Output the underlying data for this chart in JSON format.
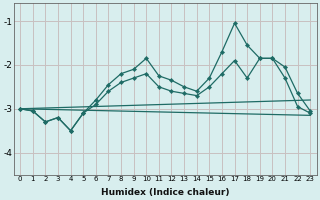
{
  "xlabel": "Humidex (Indice chaleur)",
  "xlim": [
    -0.5,
    23.5
  ],
  "ylim": [
    -4.5,
    -0.6
  ],
  "yticks": [
    -4,
    -3,
    -2,
    -1
  ],
  "xticks": [
    0,
    1,
    2,
    3,
    4,
    5,
    6,
    7,
    8,
    9,
    10,
    11,
    12,
    13,
    14,
    15,
    16,
    17,
    18,
    19,
    20,
    21,
    22,
    23
  ],
  "bg_color": "#d8eeee",
  "grid_color": "#c8c0c0",
  "line_color": "#1e6b65",
  "lines": [
    {
      "x": [
        0,
        1,
        2,
        3,
        4,
        5,
        6,
        7,
        8,
        9,
        10,
        11,
        12,
        13,
        14,
        15,
        16,
        17,
        18,
        19,
        20,
        21,
        22,
        23
      ],
      "y": [
        -3.0,
        -3.05,
        -3.3,
        -3.2,
        -3.5,
        -3.1,
        -2.8,
        -2.45,
        -2.2,
        -2.1,
        -1.85,
        -2.25,
        -2.35,
        -2.5,
        -2.6,
        -2.3,
        -1.7,
        -1.05,
        -1.55,
        -1.85,
        -1.85,
        -2.05,
        -2.65,
        -3.05
      ],
      "marker": true
    },
    {
      "x": [
        0,
        1,
        2,
        3,
        4,
        5,
        6,
        7,
        8,
        9,
        10,
        11,
        12,
        13,
        14,
        15,
        16,
        17,
        18,
        19,
        20,
        21,
        22,
        23
      ],
      "y": [
        -3.0,
        -3.05,
        -3.3,
        -3.2,
        -3.5,
        -3.1,
        -2.9,
        -2.6,
        -2.4,
        -2.3,
        -2.2,
        -2.5,
        -2.6,
        -2.65,
        -2.7,
        -2.5,
        -2.2,
        -1.9,
        -2.3,
        -1.85,
        -1.85,
        -2.3,
        -2.95,
        -3.1
      ],
      "marker": true
    },
    {
      "x": [
        0,
        23
      ],
      "y": [
        -3.0,
        -2.8
      ],
      "marker": false
    },
    {
      "x": [
        0,
        23
      ],
      "y": [
        -3.0,
        -3.15
      ],
      "marker": false
    }
  ],
  "xlabel_fontsize": 6.5,
  "xlabel_bold": true,
  "xtick_fontsize": 5.0,
  "ytick_fontsize": 6.5
}
